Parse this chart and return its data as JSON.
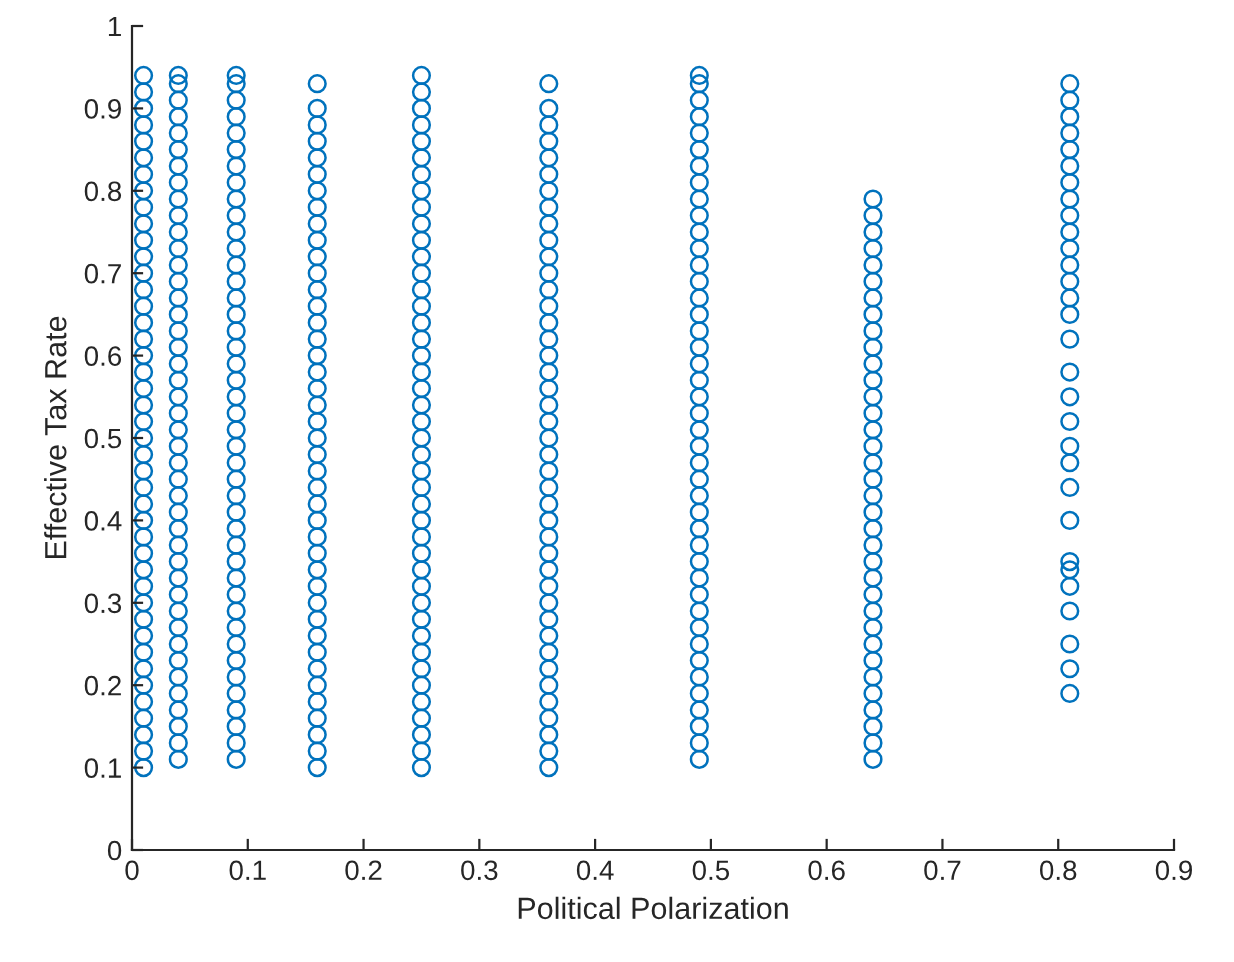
{
  "chart_data": {
    "type": "scatter",
    "xlabel": "Political Polarization",
    "ylabel": "Effective Tax Rate",
    "marker": "circle",
    "grid": false,
    "xlim": [
      0,
      0.9
    ],
    "xticks": [
      0,
      0.1,
      0.2,
      0.3,
      0.4,
      0.5,
      0.6,
      0.7,
      0.8,
      0.9
    ],
    "ylim": [
      0,
      1
    ],
    "yticks": [
      0,
      0.1,
      0.2,
      0.3,
      0.4,
      0.5,
      0.6,
      0.7,
      0.8,
      0.9,
      1
    ],
    "series": [
      {
        "color": "#0072bd",
        "x": [
          0.01,
          0.01,
          0.01,
          0.01,
          0.01,
          0.01,
          0.01,
          0.01,
          0.01,
          0.01,
          0.01,
          0.01,
          0.01,
          0.01,
          0.01,
          0.01,
          0.01,
          0.01,
          0.01,
          0.01,
          0.01,
          0.01,
          0.01,
          0.01,
          0.01,
          0.01,
          0.01,
          0.01,
          0.01,
          0.01,
          0.01,
          0.01,
          0.01,
          0.01,
          0.01,
          0.01,
          0.01,
          0.01,
          0.01,
          0.01,
          0.01,
          0.01,
          0.01
        ],
        "values": [
          0.1,
          0.12,
          0.14,
          0.16,
          0.18,
          0.2,
          0.22,
          0.24,
          0.26,
          0.28,
          0.3,
          0.32,
          0.34,
          0.36,
          0.38,
          0.4,
          0.42,
          0.44,
          0.46,
          0.48,
          0.5,
          0.52,
          0.54,
          0.56,
          0.58,
          0.6,
          0.62,
          0.64,
          0.66,
          0.68,
          0.7,
          0.72,
          0.74,
          0.76,
          0.78,
          0.8,
          0.82,
          0.84,
          0.86,
          0.88,
          0.9,
          0.92,
          0.94
        ]
      },
      {
        "color": "#0072bd",
        "x": [
          0.04,
          0.04,
          0.04,
          0.04,
          0.04,
          0.04,
          0.04,
          0.04,
          0.04,
          0.04,
          0.04,
          0.04,
          0.04,
          0.04,
          0.04,
          0.04,
          0.04,
          0.04,
          0.04,
          0.04,
          0.04,
          0.04,
          0.04,
          0.04,
          0.04,
          0.04,
          0.04,
          0.04,
          0.04,
          0.04,
          0.04,
          0.04,
          0.04,
          0.04,
          0.04,
          0.04,
          0.04,
          0.04,
          0.04,
          0.04,
          0.04,
          0.04,
          0.04
        ],
        "values": [
          0.11,
          0.13,
          0.15,
          0.17,
          0.19,
          0.21,
          0.23,
          0.25,
          0.27,
          0.29,
          0.31,
          0.33,
          0.35,
          0.37,
          0.39,
          0.41,
          0.43,
          0.45,
          0.47,
          0.49,
          0.51,
          0.53,
          0.55,
          0.57,
          0.59,
          0.61,
          0.63,
          0.65,
          0.67,
          0.69,
          0.71,
          0.73,
          0.75,
          0.77,
          0.79,
          0.81,
          0.83,
          0.85,
          0.87,
          0.89,
          0.91,
          0.93,
          0.94
        ]
      },
      {
        "color": "#0072bd",
        "x": [
          0.09,
          0.09,
          0.09,
          0.09,
          0.09,
          0.09,
          0.09,
          0.09,
          0.09,
          0.09,
          0.09,
          0.09,
          0.09,
          0.09,
          0.09,
          0.09,
          0.09,
          0.09,
          0.09,
          0.09,
          0.09,
          0.09,
          0.09,
          0.09,
          0.09,
          0.09,
          0.09,
          0.09,
          0.09,
          0.09,
          0.09,
          0.09,
          0.09,
          0.09,
          0.09,
          0.09,
          0.09,
          0.09,
          0.09,
          0.09,
          0.09,
          0.09,
          0.09
        ],
        "values": [
          0.11,
          0.13,
          0.15,
          0.17,
          0.19,
          0.21,
          0.23,
          0.25,
          0.27,
          0.29,
          0.31,
          0.33,
          0.35,
          0.37,
          0.39,
          0.41,
          0.43,
          0.45,
          0.47,
          0.49,
          0.51,
          0.53,
          0.55,
          0.57,
          0.59,
          0.61,
          0.63,
          0.65,
          0.67,
          0.69,
          0.71,
          0.73,
          0.75,
          0.77,
          0.79,
          0.81,
          0.83,
          0.85,
          0.87,
          0.89,
          0.91,
          0.93,
          0.94
        ]
      },
      {
        "color": "#0072bd",
        "x": [
          0.16,
          0.16,
          0.16,
          0.16,
          0.16,
          0.16,
          0.16,
          0.16,
          0.16,
          0.16,
          0.16,
          0.16,
          0.16,
          0.16,
          0.16,
          0.16,
          0.16,
          0.16,
          0.16,
          0.16,
          0.16,
          0.16,
          0.16,
          0.16,
          0.16,
          0.16,
          0.16,
          0.16,
          0.16,
          0.16,
          0.16,
          0.16,
          0.16,
          0.16,
          0.16,
          0.16,
          0.16,
          0.16,
          0.16,
          0.16,
          0.16,
          0.16
        ],
        "values": [
          0.1,
          0.12,
          0.14,
          0.16,
          0.18,
          0.2,
          0.22,
          0.24,
          0.26,
          0.28,
          0.3,
          0.32,
          0.34,
          0.36,
          0.38,
          0.4,
          0.42,
          0.44,
          0.46,
          0.48,
          0.5,
          0.52,
          0.54,
          0.56,
          0.58,
          0.6,
          0.62,
          0.64,
          0.66,
          0.68,
          0.7,
          0.72,
          0.74,
          0.76,
          0.78,
          0.8,
          0.82,
          0.84,
          0.86,
          0.88,
          0.9,
          0.93
        ]
      },
      {
        "color": "#0072bd",
        "x": [
          0.25,
          0.25,
          0.25,
          0.25,
          0.25,
          0.25,
          0.25,
          0.25,
          0.25,
          0.25,
          0.25,
          0.25,
          0.25,
          0.25,
          0.25,
          0.25,
          0.25,
          0.25,
          0.25,
          0.25,
          0.25,
          0.25,
          0.25,
          0.25,
          0.25,
          0.25,
          0.25,
          0.25,
          0.25,
          0.25,
          0.25,
          0.25,
          0.25,
          0.25,
          0.25,
          0.25,
          0.25,
          0.25,
          0.25,
          0.25,
          0.25,
          0.25,
          0.25
        ],
        "values": [
          0.1,
          0.12,
          0.14,
          0.16,
          0.18,
          0.2,
          0.22,
          0.24,
          0.26,
          0.28,
          0.3,
          0.32,
          0.34,
          0.36,
          0.38,
          0.4,
          0.42,
          0.44,
          0.46,
          0.48,
          0.5,
          0.52,
          0.54,
          0.56,
          0.58,
          0.6,
          0.62,
          0.64,
          0.66,
          0.68,
          0.7,
          0.72,
          0.74,
          0.76,
          0.78,
          0.8,
          0.82,
          0.84,
          0.86,
          0.88,
          0.9,
          0.92,
          0.94
        ]
      },
      {
        "color": "#0072bd",
        "x": [
          0.36,
          0.36,
          0.36,
          0.36,
          0.36,
          0.36,
          0.36,
          0.36,
          0.36,
          0.36,
          0.36,
          0.36,
          0.36,
          0.36,
          0.36,
          0.36,
          0.36,
          0.36,
          0.36,
          0.36,
          0.36,
          0.36,
          0.36,
          0.36,
          0.36,
          0.36,
          0.36,
          0.36,
          0.36,
          0.36,
          0.36,
          0.36,
          0.36,
          0.36,
          0.36,
          0.36,
          0.36,
          0.36,
          0.36,
          0.36,
          0.36,
          0.36
        ],
        "values": [
          0.1,
          0.12,
          0.14,
          0.16,
          0.18,
          0.2,
          0.22,
          0.24,
          0.26,
          0.28,
          0.3,
          0.32,
          0.34,
          0.36,
          0.38,
          0.4,
          0.42,
          0.44,
          0.46,
          0.48,
          0.5,
          0.52,
          0.54,
          0.56,
          0.58,
          0.6,
          0.62,
          0.64,
          0.66,
          0.68,
          0.7,
          0.72,
          0.74,
          0.76,
          0.78,
          0.8,
          0.82,
          0.84,
          0.86,
          0.88,
          0.9,
          0.93
        ]
      },
      {
        "color": "#0072bd",
        "x": [
          0.49,
          0.49,
          0.49,
          0.49,
          0.49,
          0.49,
          0.49,
          0.49,
          0.49,
          0.49,
          0.49,
          0.49,
          0.49,
          0.49,
          0.49,
          0.49,
          0.49,
          0.49,
          0.49,
          0.49,
          0.49,
          0.49,
          0.49,
          0.49,
          0.49,
          0.49,
          0.49,
          0.49,
          0.49,
          0.49,
          0.49,
          0.49,
          0.49,
          0.49,
          0.49,
          0.49,
          0.49,
          0.49,
          0.49,
          0.49,
          0.49,
          0.49,
          0.49
        ],
        "values": [
          0.11,
          0.13,
          0.15,
          0.17,
          0.19,
          0.21,
          0.23,
          0.25,
          0.27,
          0.29,
          0.31,
          0.33,
          0.35,
          0.37,
          0.39,
          0.41,
          0.43,
          0.45,
          0.47,
          0.49,
          0.51,
          0.53,
          0.55,
          0.57,
          0.59,
          0.61,
          0.63,
          0.65,
          0.67,
          0.69,
          0.71,
          0.73,
          0.75,
          0.77,
          0.79,
          0.81,
          0.83,
          0.85,
          0.87,
          0.89,
          0.91,
          0.93,
          0.94
        ]
      },
      {
        "color": "#0072bd",
        "x": [
          0.64,
          0.64,
          0.64,
          0.64,
          0.64,
          0.64,
          0.64,
          0.64,
          0.64,
          0.64,
          0.64,
          0.64,
          0.64,
          0.64,
          0.64,
          0.64,
          0.64,
          0.64,
          0.64,
          0.64,
          0.64,
          0.64,
          0.64,
          0.64,
          0.64,
          0.64,
          0.64,
          0.64,
          0.64,
          0.64,
          0.64,
          0.64,
          0.64,
          0.64,
          0.64
        ],
        "values": [
          0.11,
          0.13,
          0.15,
          0.17,
          0.19,
          0.21,
          0.23,
          0.25,
          0.27,
          0.29,
          0.31,
          0.33,
          0.35,
          0.37,
          0.39,
          0.41,
          0.43,
          0.45,
          0.47,
          0.49,
          0.51,
          0.53,
          0.55,
          0.57,
          0.59,
          0.61,
          0.63,
          0.65,
          0.67,
          0.69,
          0.71,
          0.73,
          0.75,
          0.77,
          0.79
        ]
      },
      {
        "color": "#0072bd",
        "x": [
          0.81,
          0.81,
          0.81,
          0.81,
          0.81,
          0.81,
          0.81,
          0.81,
          0.81,
          0.81,
          0.81,
          0.81,
          0.81,
          0.81,
          0.81,
          0.81,
          0.81,
          0.81,
          0.81,
          0.81,
          0.81,
          0.81,
          0.81,
          0.81,
          0.81,
          0.81,
          0.81,
          0.81,
          0.81,
          0.81
        ],
        "values": [
          0.19,
          0.22,
          0.25,
          0.29,
          0.32,
          0.34,
          0.35,
          0.4,
          0.44,
          0.47,
          0.49,
          0.52,
          0.55,
          0.58,
          0.62,
          0.65,
          0.67,
          0.69,
          0.71,
          0.73,
          0.75,
          0.77,
          0.79,
          0.81,
          0.83,
          0.85,
          0.87,
          0.89,
          0.91,
          0.93
        ]
      }
    ]
  }
}
